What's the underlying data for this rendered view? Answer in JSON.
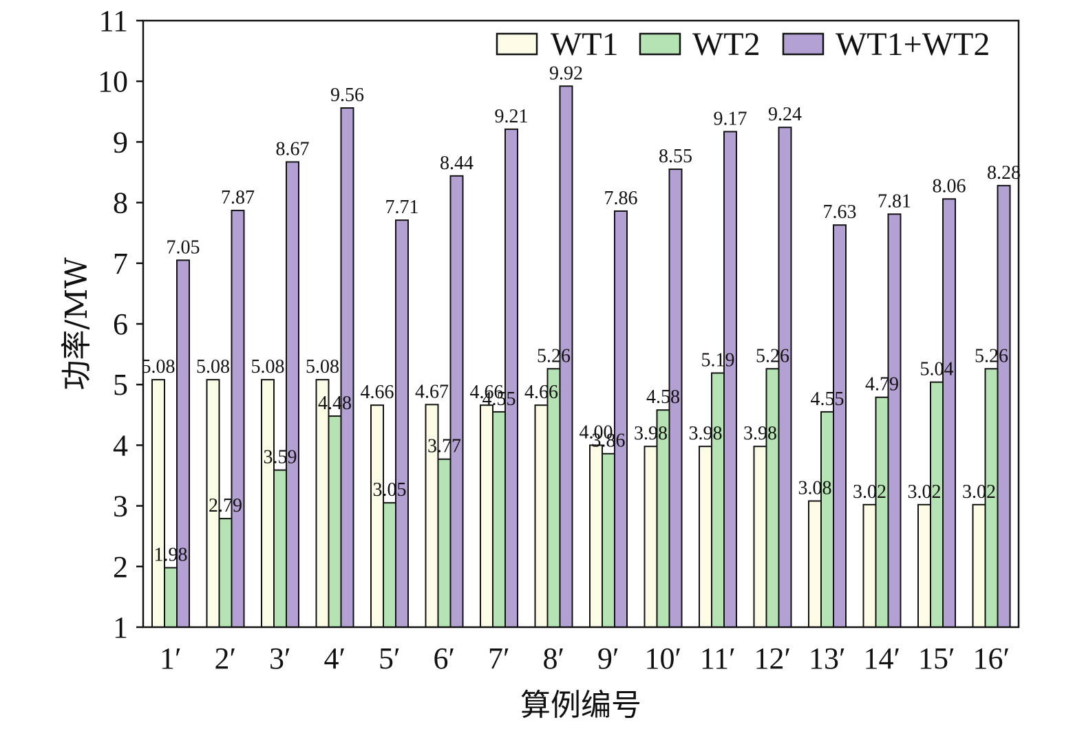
{
  "chart_data": {
    "type": "bar",
    "title": "",
    "xlabel": "算例编号",
    "ylabel": "功率/MW",
    "ylim": [
      1,
      11
    ],
    "yticks": [
      1,
      2,
      3,
      4,
      5,
      6,
      7,
      8,
      9,
      10,
      11
    ],
    "grid": false,
    "legend_position": "top-right",
    "categories": [
      "1′",
      "2′",
      "3′",
      "4′",
      "5′",
      "6′",
      "7′",
      "8′",
      "9′",
      "10′",
      "11′",
      "12′",
      "13′",
      "14′",
      "15′",
      "16′"
    ],
    "series": [
      {
        "name": "WT1",
        "color": "#fbfbe6",
        "values": [
          5.08,
          5.08,
          5.08,
          5.08,
          4.66,
          4.67,
          4.66,
          4.66,
          4.0,
          3.98,
          3.98,
          3.98,
          3.08,
          3.02,
          3.02,
          3.02
        ],
        "labels": [
          "5.08",
          "5.08",
          "5.08",
          "5.08",
          "4.66",
          "4.67",
          "4.66",
          "4.66",
          "4.00",
          "3.98",
          "3.98",
          "3.98",
          "3.08",
          "3.02",
          "3.02",
          "3.02"
        ]
      },
      {
        "name": "WT2",
        "color": "#b5e3b3",
        "values": [
          1.98,
          2.79,
          3.59,
          4.48,
          3.05,
          3.77,
          4.55,
          5.26,
          3.86,
          4.58,
          5.19,
          5.26,
          4.55,
          4.79,
          5.04,
          5.26
        ],
        "labels": [
          "1.98",
          "2.79",
          "3.59",
          "4.48",
          "3.05",
          "3.77",
          "4.55",
          "5.26",
          "3.86",
          "4.58",
          "5.19",
          "5.26",
          "4.55",
          "4.79",
          "5.04",
          "5.26"
        ]
      },
      {
        "name": "WT1+WT2",
        "color": "#b4a1d4",
        "values": [
          7.05,
          7.87,
          8.67,
          9.56,
          7.71,
          8.44,
          9.21,
          9.92,
          7.86,
          8.55,
          9.17,
          9.24,
          7.63,
          7.81,
          8.06,
          8.28
        ],
        "labels": [
          "7.05",
          "7.87",
          "8.67",
          "9.56",
          "7.71",
          "8.44",
          "9.21",
          "9.92",
          "7.86",
          "8.55",
          "9.17",
          "9.24",
          "7.63",
          "7.81",
          "8.06",
          "8.28"
        ]
      }
    ]
  }
}
